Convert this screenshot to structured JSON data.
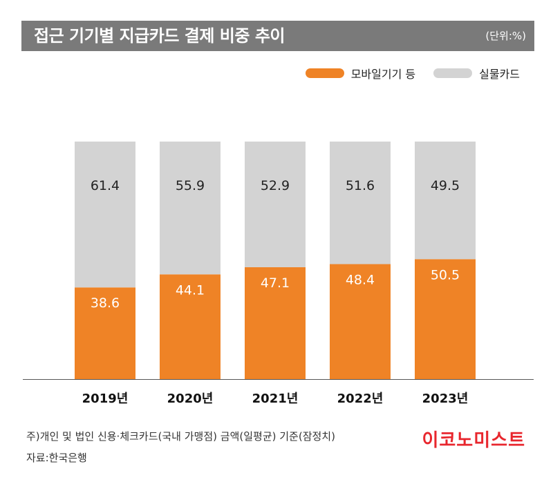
{
  "header": {
    "title": "접근 기기별 지급카드 결제 비중 추이",
    "unit": "(단위:%)"
  },
  "footer": {
    "note": "주)개인 및 법인 신용·체크카드(국내 가맹점) 금액(일평균) 기준(잠정치)",
    "source": "자료:한국은행",
    "logo": "이코노미스트"
  },
  "colors": {
    "mobile": "#ef8326",
    "physical": "#d3d3d3",
    "title_bar": "#7a7a7a",
    "logo": "#e8262d"
  },
  "chart_data": {
    "type": "bar",
    "stacked": true,
    "categories": [
      "2019년",
      "2020년",
      "2021년",
      "2022년",
      "2023년"
    ],
    "series": [
      {
        "name": "모바일기기 등",
        "values": [
          38.6,
          44.1,
          47.1,
          48.4,
          50.5
        ],
        "color": "#ef8326"
      },
      {
        "name": "실물카드",
        "values": [
          61.4,
          55.9,
          52.9,
          51.6,
          49.5
        ],
        "color": "#d3d3d3"
      }
    ],
    "ylim": [
      0,
      100
    ],
    "grid": false,
    "legend": "top-right"
  }
}
